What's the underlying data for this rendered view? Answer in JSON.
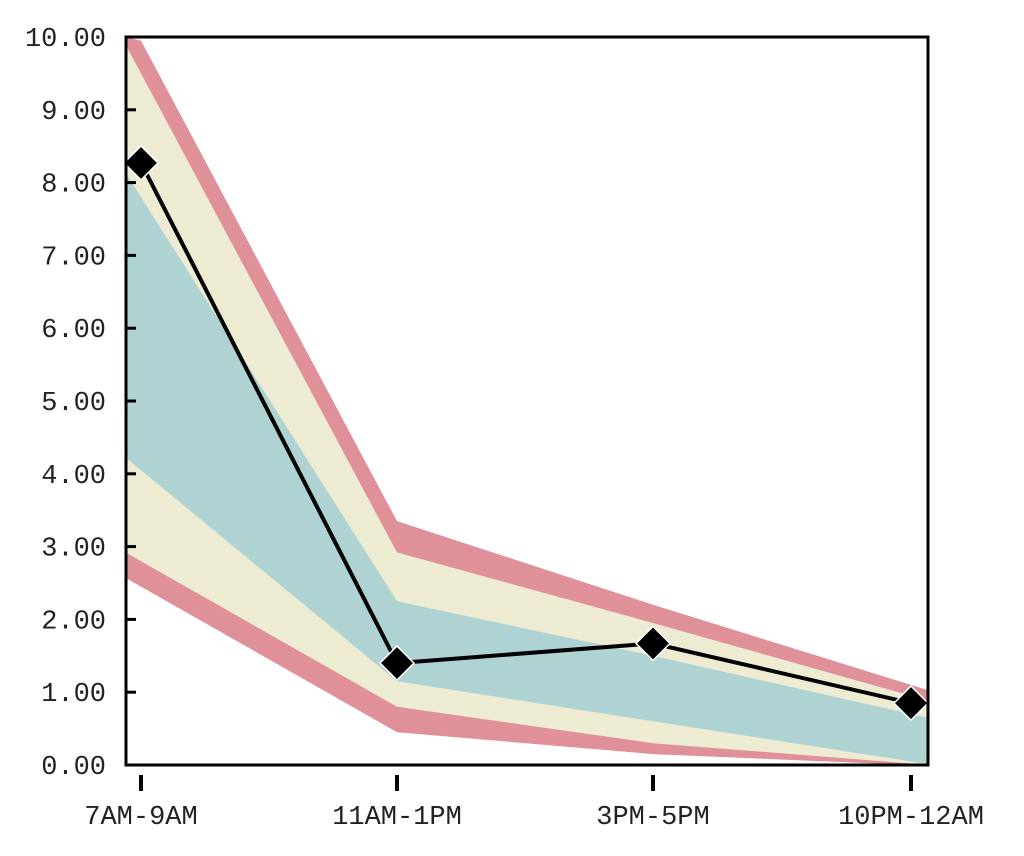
{
  "chart_data": {
    "type": "area",
    "title": "",
    "xlabel": "",
    "ylabel": "",
    "categories": [
      "7AM-9AM",
      "11AM-1PM",
      "3PM-5PM",
      "10PM-12AM"
    ],
    "ylim": [
      0,
      10
    ],
    "yticks": [
      "0.00",
      "1.00",
      "2.00",
      "3.00",
      "4.00",
      "5.00",
      "6.00",
      "7.00",
      "8.00",
      "9.00",
      "10.00"
    ],
    "grid": false,
    "legend": "none",
    "bands": [
      {
        "color": "#df9098",
        "lower": [
          2.45,
          0.45,
          0.15,
          0.0
        ],
        "upper": [
          9.95,
          3.35,
          2.2,
          1.1
        ]
      },
      {
        "color": "#edebd2",
        "lower": [
          2.8,
          0.8,
          0.3,
          0.02
        ],
        "upper": [
          9.5,
          2.92,
          1.95,
          0.95
        ]
      },
      {
        "color": "#afd3d3",
        "lower": [
          4.05,
          1.15,
          0.6,
          0.05
        ],
        "upper": [
          7.8,
          2.25,
          1.5,
          0.7
        ]
      }
    ],
    "series": [
      {
        "values": [
          8.27,
          1.4,
          1.67,
          0.85
        ],
        "color": "#000000",
        "marker": "diamond"
      }
    ]
  }
}
